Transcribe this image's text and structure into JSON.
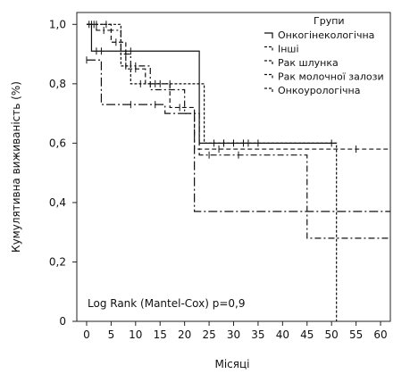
{
  "chart_data": {
    "type": "line",
    "subtype": "kaplan-meier",
    "title": "",
    "xlabel": "Місяці",
    "ylabel": "Кумулятивна виживаність (%)",
    "xlim": [
      -2,
      62
    ],
    "ylim": [
      0,
      1.04
    ],
    "x_ticks": [
      0,
      5,
      10,
      15,
      20,
      25,
      30,
      35,
      40,
      45,
      50,
      55,
      60
    ],
    "y_ticks": [
      {
        "value": 0,
        "label": "0"
      },
      {
        "value": 0.2,
        "label": "0,2"
      },
      {
        "value": 0.4,
        "label": "0,4"
      },
      {
        "value": 0.6,
        "label": "0,6"
      },
      {
        "value": 0.8,
        "label": "0,8"
      },
      {
        "value": 1.0,
        "label": "1,0"
      }
    ],
    "grid": false,
    "legend": {
      "title": "Групи",
      "placement": "top-right",
      "entries": [
        "Онкогінекологічна",
        "Інші",
        "Рак шлунка",
        "Рак молочної залози",
        "Онкоурологічна"
      ]
    },
    "annotations": [
      "Log Rank (Mantel-Cox) p=0,9"
    ],
    "series": [
      {
        "name": "Онкогінекологічна",
        "dash": "solid",
        "steps": [
          [
            0,
            1.0
          ],
          [
            1,
            0.91
          ],
          [
            23,
            0.6
          ],
          [
            51,
            0.6
          ]
        ],
        "censored": [
          0.5,
          2,
          3,
          9,
          26,
          28,
          30,
          32,
          35,
          50
        ]
      },
      {
        "name": "Інші",
        "dash": "dash-short",
        "steps": [
          [
            0,
            1.0
          ],
          [
            7,
            0.86
          ],
          [
            9,
            0.8
          ],
          [
            24,
            0.6
          ],
          [
            51,
            0.6
          ],
          [
            51,
            0.0
          ]
        ],
        "censored": [
          1,
          4,
          8,
          11,
          14,
          17,
          28,
          33
        ]
      },
      {
        "name": "Рак шлунка",
        "dash": "dash",
        "steps": [
          [
            0,
            1.0
          ],
          [
            5,
            0.94
          ],
          [
            8,
            0.85
          ],
          [
            12,
            0.8
          ],
          [
            17,
            0.72
          ],
          [
            22,
            0.58
          ],
          [
            62,
            0.58
          ]
        ],
        "censored": [
          2,
          6,
          10,
          15,
          19,
          27,
          55
        ]
      },
      {
        "name": "Рак молочної залози",
        "dash": "dash-dot",
        "steps": [
          [
            0,
            1.0
          ],
          [
            2,
            0.98
          ],
          [
            7,
            0.9
          ],
          [
            9,
            0.86
          ],
          [
            13,
            0.78
          ],
          [
            20,
            0.7
          ],
          [
            23,
            0.56
          ],
          [
            44,
            0.56
          ],
          [
            45,
            0.28
          ],
          [
            62,
            0.28
          ]
        ],
        "censored": [
          1.5,
          3.5,
          8,
          10,
          25,
          31
        ]
      },
      {
        "name": "Онкоурологічна",
        "dash": "long-dash-dot",
        "steps": [
          [
            0,
            0.88
          ],
          [
            3,
            0.73
          ],
          [
            13,
            0.73
          ],
          [
            16,
            0.7
          ],
          [
            22,
            0.37
          ],
          [
            62,
            0.37
          ]
        ],
        "censored": [
          0,
          9,
          14
        ]
      }
    ]
  }
}
